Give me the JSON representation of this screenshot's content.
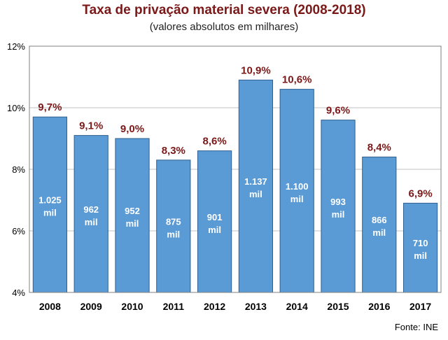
{
  "colors": {
    "title": "#7b1818",
    "bar": "#5b9bd5",
    "pct_label": "#7b1818",
    "grid": "#c0c0c0",
    "axis": "#808080"
  },
  "footer": {
    "source": "Fonte: INE"
  },
  "chart_data": {
    "type": "bar",
    "title": "Taxa de privação material severa (2008-2018)",
    "subtitle": "(valores absolutos em milhares)",
    "xlabel": "",
    "ylabel": "",
    "ylim": [
      4,
      12
    ],
    "yticks": [
      4,
      6,
      8,
      10,
      12
    ],
    "ytick_labels": [
      "4%",
      "6%",
      "8%",
      "10%",
      "12%"
    ],
    "grid": true,
    "categories": [
      "2008",
      "2009",
      "2010",
      "2011",
      "2012",
      "2013",
      "2014",
      "2015",
      "2016",
      "2017"
    ],
    "values": [
      9.7,
      9.1,
      9.0,
      8.3,
      8.6,
      10.9,
      10.6,
      9.6,
      8.4,
      6.9
    ],
    "value_labels": [
      "9,7%",
      "9,1%",
      "9,0%",
      "8,3%",
      "8,6%",
      "10,9%",
      "10,6%",
      "9,6%",
      "8,4%",
      "6,9%"
    ],
    "inner_labels": [
      [
        "1.025",
        "mil"
      ],
      [
        "962",
        "mil"
      ],
      [
        "952",
        "mil"
      ],
      [
        "875",
        "mil"
      ],
      [
        "901",
        "mil"
      ],
      [
        "1.137",
        "mil"
      ],
      [
        "1.100",
        "mil"
      ],
      [
        "993",
        "mil"
      ],
      [
        "866",
        "mil"
      ],
      [
        "710",
        "mil"
      ]
    ]
  }
}
